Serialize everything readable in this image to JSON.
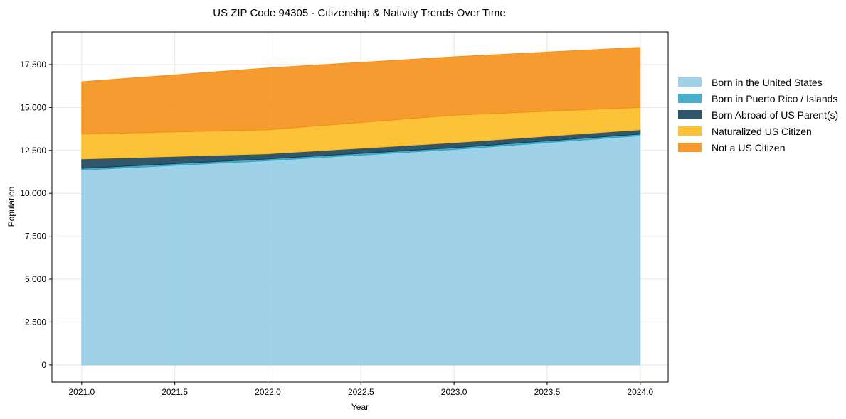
{
  "chart_data": {
    "type": "area",
    "stacked": true,
    "title": "US ZIP Code 94305 - Citizenship & Nativity Trends Over Time",
    "xlabel": "Year",
    "ylabel": "Population",
    "x": [
      2021,
      2022,
      2023,
      2024
    ],
    "xlim": [
      2020.84,
      2024.15
    ],
    "ylim": [
      -1000,
      19400
    ],
    "x_ticks": [
      2021.0,
      2021.5,
      2022.0,
      2022.5,
      2023.0,
      2023.5,
      2024.0
    ],
    "x_tick_labels": [
      "2021.0",
      "2021.5",
      "2022.0",
      "2022.5",
      "2023.0",
      "2023.5",
      "2024.0"
    ],
    "y_ticks": [
      0,
      2500,
      5000,
      7500,
      10000,
      12500,
      15000,
      17500
    ],
    "y_tick_labels": [
      "0",
      "2,500",
      "5,000",
      "7,500",
      "10,000",
      "12,500",
      "15,000",
      "17,500"
    ],
    "grid": true,
    "legend_position": "right",
    "series": [
      {
        "name": "Born in the United States",
        "values": [
          11350,
          11900,
          12550,
          13350
        ],
        "color": "#92cce5"
      },
      {
        "name": "Born in Puerto Rico / Islands",
        "values": [
          100,
          100,
          100,
          100
        ],
        "color": "#2ea4c4"
      },
      {
        "name": "Born Abroad of US Parent(s)",
        "values": [
          550,
          300,
          300,
          250
        ],
        "color": "#143f54"
      },
      {
        "name": "Naturalized US Citizen",
        "values": [
          1450,
          1400,
          1600,
          1300
        ],
        "color": "#fdbb1d"
      },
      {
        "name": "Not a US Citizen",
        "values": [
          3050,
          3600,
          3400,
          3500
        ],
        "color": "#f58d13"
      }
    ]
  }
}
